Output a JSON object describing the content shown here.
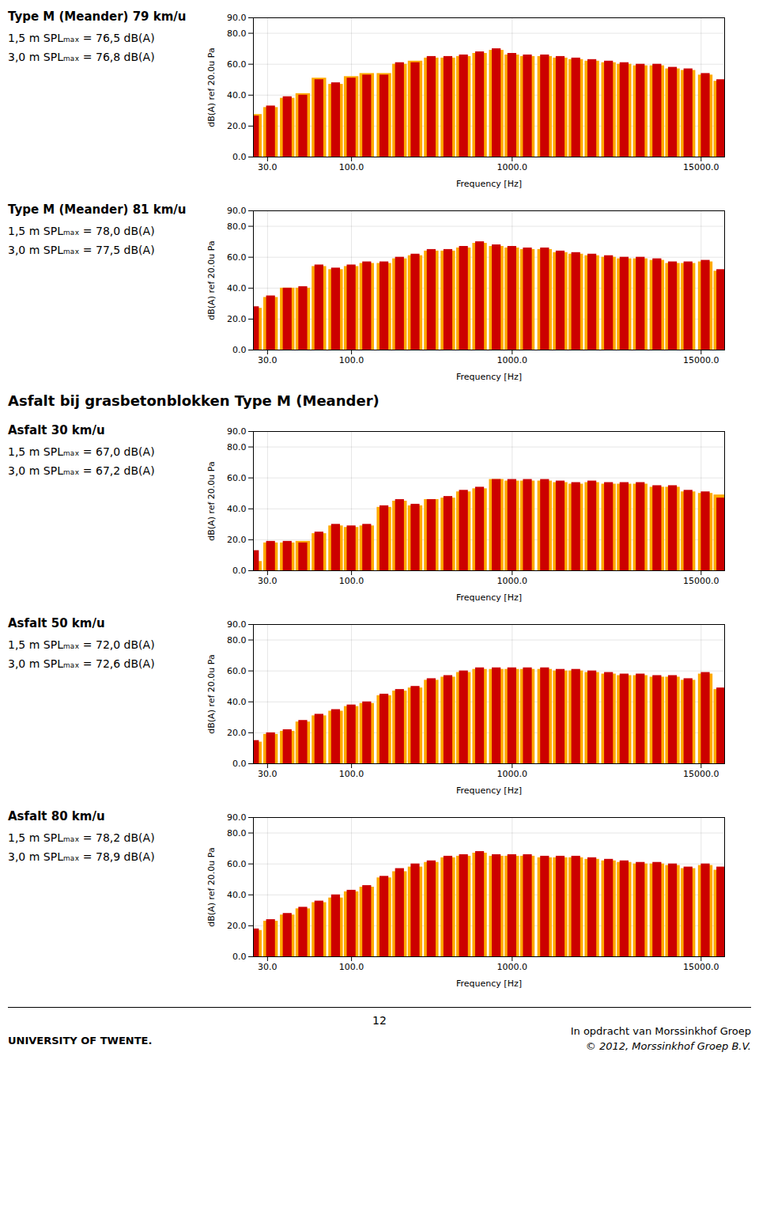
{
  "chart_data": [
    {
      "type": "bar",
      "title": "Type M (Meander) 79 km/u",
      "subtitle": [
        "1,5 m SPLₘₐₓ = 76,5 dB(A)",
        "3,0 m SPLₘₐₓ = 76,8 dB(A)"
      ],
      "x_label": "Frequency [Hz]",
      "y_label": "dB(A) ref 20.0u Pa",
      "x": [
        25,
        31.5,
        40,
        50,
        63,
        80,
        100,
        125,
        160,
        200,
        250,
        315,
        400,
        500,
        630,
        800,
        1000,
        1250,
        1600,
        2000,
        2500,
        3150,
        4000,
        5000,
        6300,
        8000,
        10000,
        12500,
        16000,
        20000
      ],
      "series": [
        {
          "color": "#FFAA00",
          "values": [
            27.5,
            32,
            38,
            41,
            51,
            47,
            52,
            54,
            54,
            60,
            62,
            64,
            64,
            65,
            67,
            69,
            66,
            65,
            65,
            64,
            63,
            62,
            61,
            60,
            59,
            59,
            57,
            56,
            53,
            49
          ]
        },
        {
          "color": "#CC0000",
          "values": [
            26.5,
            33,
            39,
            40,
            50,
            48,
            51,
            53,
            53,
            61,
            61,
            65,
            65,
            66,
            68,
            70,
            67,
            66,
            66,
            65,
            64,
            63,
            62,
            61,
            60,
            60,
            58,
            57,
            54,
            50
          ]
        }
      ],
      "log": "x",
      "xlim": [
        24.5,
        21000
      ],
      "xticks": [
        {
          "value": 30,
          "label": "30.0"
        },
        {
          "value": 100,
          "label": "100.0"
        },
        {
          "value": 1000,
          "label": "1000.0"
        },
        {
          "value": 15000,
          "label": "15000.0"
        }
      ],
      "ylim": [
        0,
        90
      ],
      "yticks": [
        {
          "value": 0,
          "label": "0.0"
        },
        {
          "value": 20,
          "label": "20.0"
        },
        {
          "value": 40,
          "label": "40.0"
        },
        {
          "value": 60,
          "label": "60.0"
        },
        {
          "value": 80,
          "label": "80.0"
        },
        {
          "value": 90,
          "label": "90.0"
        }
      ],
      "grid": true
    },
    {
      "type": "bar",
      "title": "Type M (Meander) 81 km/u",
      "subtitle": [
        "1,5 m SPLₘₐₓ = 78,0 dB(A)",
        "3,0 m SPLₘₐₓ = 77,5 dB(A)"
      ],
      "x_label": "Frequency [Hz]",
      "y_label": "dB(A) ref 20.0u Pa",
      "x": [
        25,
        31.5,
        40,
        50,
        63,
        80,
        100,
        125,
        160,
        200,
        250,
        315,
        400,
        500,
        630,
        800,
        1000,
        1250,
        1600,
        2000,
        2500,
        3150,
        4000,
        5000,
        6300,
        8000,
        10000,
        12500,
        16000,
        20000
      ],
      "series": [
        {
          "color": "#FFAA00",
          "values": [
            27,
            34,
            40,
            40,
            54,
            52,
            54,
            56,
            56,
            59,
            61,
            64,
            64,
            66,
            69,
            67,
            66,
            65,
            65,
            63,
            62,
            61,
            60,
            59,
            59,
            58,
            56,
            56,
            57,
            51
          ]
        },
        {
          "color": "#CC0000",
          "values": [
            28,
            35,
            40,
            41,
            55,
            53,
            55,
            57,
            57,
            60,
            62,
            65,
            65,
            67,
            70,
            68,
            67,
            66,
            66,
            64,
            63,
            62,
            61,
            60,
            60,
            59,
            57,
            57,
            58,
            52
          ]
        }
      ],
      "log": "x",
      "xlim": [
        24.5,
        21000
      ],
      "xticks": [
        {
          "value": 30,
          "label": "30.0"
        },
        {
          "value": 100,
          "label": "100.0"
        },
        {
          "value": 1000,
          "label": "1000.0"
        },
        {
          "value": 15000,
          "label": "15000.0"
        }
      ],
      "ylim": [
        0,
        90
      ],
      "yticks": [
        {
          "value": 0,
          "label": "0.0"
        },
        {
          "value": 20,
          "label": "20.0"
        },
        {
          "value": 40,
          "label": "40.0"
        },
        {
          "value": 60,
          "label": "60.0"
        },
        {
          "value": 80,
          "label": "80.0"
        },
        {
          "value": 90,
          "label": "90.0"
        }
      ],
      "grid": true
    },
    {
      "type": "bar",
      "title": "Asfalt 30 km/u",
      "subtitle": [
        "1,5 m SPLₘₐₓ = 67,0 dB(A)",
        "3,0 m SPLₘₐₓ = 67,2 dB(A)"
      ],
      "x_label": "Frequency [Hz]",
      "y_label": "dB(A) ref 20.0u Pa",
      "x": [
        25,
        31.5,
        40,
        50,
        63,
        80,
        100,
        125,
        160,
        200,
        250,
        315,
        400,
        500,
        630,
        800,
        1000,
        1250,
        1600,
        2000,
        2500,
        3150,
        4000,
        5000,
        6300,
        8000,
        10000,
        12500,
        16000,
        20000
      ],
      "series": [
        {
          "color": "#FFAA00",
          "values": [
            6,
            18,
            18,
            19,
            24,
            29,
            28,
            29,
            41,
            45,
            42,
            46,
            47,
            51,
            53,
            59,
            58,
            58,
            58,
            57,
            56,
            57,
            56,
            56,
            56,
            54,
            54,
            51,
            50,
            49
          ]
        },
        {
          "color": "#CC0000",
          "values": [
            13,
            19,
            19,
            18,
            25,
            30,
            29,
            30,
            42,
            46,
            43,
            46,
            48,
            52,
            54,
            59,
            59,
            59,
            59,
            58,
            57,
            58,
            57,
            57,
            57,
            55,
            55,
            52,
            51,
            47
          ]
        }
      ],
      "log": "x",
      "xlim": [
        24.5,
        21000
      ],
      "xticks": [
        {
          "value": 30,
          "label": "30.0"
        },
        {
          "value": 100,
          "label": "100.0"
        },
        {
          "value": 1000,
          "label": "1000.0"
        },
        {
          "value": 15000,
          "label": "15000.0"
        }
      ],
      "ylim": [
        0,
        90
      ],
      "yticks": [
        {
          "value": 0,
          "label": "0.0"
        },
        {
          "value": 20,
          "label": "20.0"
        },
        {
          "value": 40,
          "label": "40.0"
        },
        {
          "value": 60,
          "label": "60.0"
        },
        {
          "value": 80,
          "label": "80.0"
        },
        {
          "value": 90,
          "label": "90.0"
        }
      ],
      "grid": true
    },
    {
      "type": "bar",
      "title": "Asfalt 50 km/u",
      "subtitle": [
        "1,5 m SPLₘₐₓ = 72,0 dB(A)",
        "3,0 m SPLₘₐₓ = 72,6 dB(A)"
      ],
      "x_label": "Frequency [Hz]",
      "y_label": "dB(A) ref 20.0u Pa",
      "x": [
        25,
        31.5,
        40,
        50,
        63,
        80,
        100,
        125,
        160,
        200,
        250,
        315,
        400,
        500,
        630,
        800,
        1000,
        1250,
        1600,
        2000,
        2500,
        3150,
        4000,
        5000,
        6300,
        8000,
        10000,
        12500,
        16000,
        20000
      ],
      "series": [
        {
          "color": "#FFAA00",
          "values": [
            14,
            19,
            21,
            27,
            31,
            34,
            37,
            39,
            44,
            47,
            49,
            54,
            56,
            59,
            61,
            61,
            61,
            61,
            61,
            60,
            60,
            59,
            58,
            57,
            57,
            56,
            56,
            54,
            58,
            48
          ]
        },
        {
          "color": "#CC0000",
          "values": [
            15,
            20,
            22,
            28,
            32,
            35,
            38,
            40,
            45,
            48,
            50,
            55,
            57,
            60,
            62,
            62,
            62,
            62,
            62,
            61,
            61,
            60,
            59,
            58,
            58,
            57,
            57,
            55,
            59,
            49
          ]
        }
      ],
      "log": "x",
      "xlim": [
        24.5,
        21000
      ],
      "xticks": [
        {
          "value": 30,
          "label": "30.0"
        },
        {
          "value": 100,
          "label": "100.0"
        },
        {
          "value": 1000,
          "label": "1000.0"
        },
        {
          "value": 15000,
          "label": "15000.0"
        }
      ],
      "ylim": [
        0,
        90
      ],
      "yticks": [
        {
          "value": 0,
          "label": "0.0"
        },
        {
          "value": 20,
          "label": "20.0"
        },
        {
          "value": 40,
          "label": "40.0"
        },
        {
          "value": 60,
          "label": "60.0"
        },
        {
          "value": 80,
          "label": "80.0"
        },
        {
          "value": 90,
          "label": "90.0"
        }
      ],
      "grid": true
    },
    {
      "type": "bar",
      "title": "Asfalt 80 km/u",
      "subtitle": [
        "1,5 m SPLₘₐₓ = 78,2 dB(A)",
        "3,0 m SPLₘₐₓ = 78,9 dB(A)"
      ],
      "x_label": "Frequency [Hz]",
      "y_label": "dB(A) ref 20.0u Pa",
      "x": [
        25,
        31.5,
        40,
        50,
        63,
        80,
        100,
        125,
        160,
        200,
        250,
        315,
        400,
        500,
        630,
        800,
        1000,
        1250,
        1600,
        2000,
        2500,
        3150,
        4000,
        5000,
        6300,
        8000,
        10000,
        12500,
        16000,
        20000
      ],
      "series": [
        {
          "color": "#FFAA00",
          "values": [
            17,
            23,
            27,
            31,
            35,
            38,
            42,
            45,
            51,
            55,
            58,
            61,
            64,
            65,
            67,
            65,
            65,
            65,
            64,
            64,
            64,
            63,
            62,
            61,
            60,
            60,
            59,
            57,
            59,
            56
          ]
        },
        {
          "color": "#CC0000",
          "values": [
            18,
            24,
            28,
            32,
            36,
            40,
            43,
            46,
            52,
            57,
            60,
            62,
            65,
            66,
            68,
            66,
            66,
            66,
            65,
            65,
            65,
            64,
            63,
            62,
            61,
            61,
            60,
            58,
            60,
            58
          ]
        }
      ],
      "log": "x",
      "xlim": [
        24.5,
        21000
      ],
      "xticks": [
        {
          "value": 30,
          "label": "30.0"
        },
        {
          "value": 100,
          "label": "100.0"
        },
        {
          "value": 1000,
          "label": "1000.0"
        },
        {
          "value": 15000,
          "label": "15000.0"
        }
      ],
      "ylim": [
        0,
        90
      ],
      "yticks": [
        {
          "value": 0,
          "label": "0.0"
        },
        {
          "value": 20,
          "label": "20.0"
        },
        {
          "value": 40,
          "label": "40.0"
        },
        {
          "value": 60,
          "label": "60.0"
        },
        {
          "value": 80,
          "label": "80.0"
        },
        {
          "value": 90,
          "label": "90.0"
        }
      ],
      "grid": true
    }
  ],
  "annotations": [
    "Asfalt bij grasbetonblokken Type M (Meander)",
    "12",
    "UNIVERSITY OF TWENTE.",
    "In opdracht van Morssinkhof Groep",
    "© 2012, Morssinkhof Groep B.V."
  ]
}
